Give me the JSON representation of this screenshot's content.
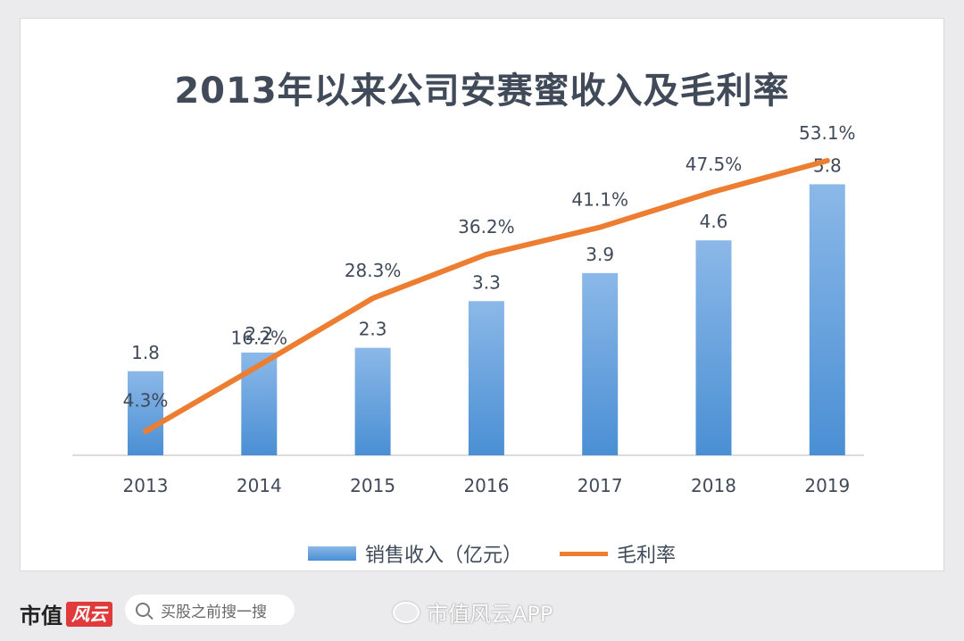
{
  "chart_data": {
    "type": "bar",
    "title": "2013年以来公司安赛蜜收入及毛利率",
    "categories": [
      "2013",
      "2014",
      "2015",
      "2016",
      "2017",
      "2018",
      "2019"
    ],
    "series": [
      {
        "name": "销售收入（亿元）",
        "type": "bar",
        "values": [
          1.8,
          2.2,
          2.3,
          3.3,
          3.9,
          4.6,
          5.8
        ],
        "labels": [
          "1.8",
          "2.2",
          "2.3",
          "3.3",
          "3.9",
          "4.6",
          "5.8"
        ],
        "color": "#5b9bd5"
      },
      {
        "name": "毛利率",
        "type": "line",
        "values": [
          4.3,
          16.2,
          28.3,
          36.2,
          41.1,
          47.5,
          53.1
        ],
        "labels": [
          "4.3%",
          "16.2%",
          "28.3%",
          "36.2%",
          "41.1%",
          "47.5%",
          "53.1%"
        ],
        "color": "#ed7d31"
      }
    ],
    "grid": false,
    "legend_position": "bottom"
  },
  "footer": {
    "brand_text": "市值",
    "brand_stamp": "风云",
    "search_placeholder": "买股之前搜一搜",
    "watermark": "市值风云APP"
  }
}
